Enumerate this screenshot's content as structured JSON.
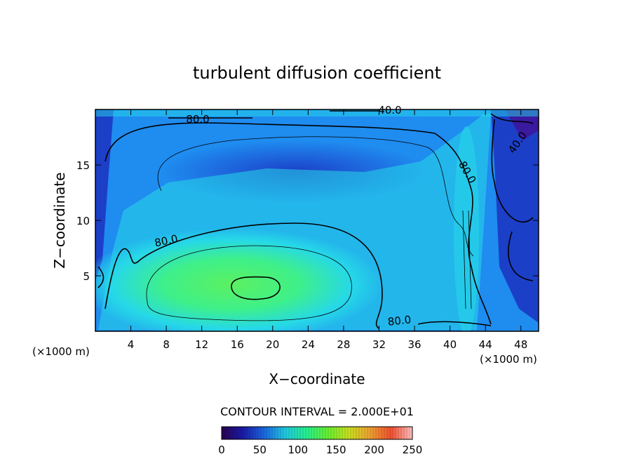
{
  "chart_data": {
    "type": "heatmap",
    "title": "turbulent diffusion coefficient",
    "xlabel": "X−coordinate",
    "ylabel": "Z−coordinate",
    "x_unit_left": "(×1000 m)",
    "x_unit_right": "(×1000 m)",
    "xlim": [
      0,
      50
    ],
    "ylim": [
      0,
      20
    ],
    "x_ticks": [
      4,
      8,
      12,
      16,
      20,
      24,
      28,
      32,
      36,
      40,
      44,
      48
    ],
    "y_ticks": [
      5,
      10,
      15
    ],
    "contour_interval_text": "CONTOUR INTERVAL = 2.000E+01",
    "contour_labels": [
      "80.0",
      "80.0",
      "80.0",
      "80.0",
      "40.0",
      "40.0"
    ],
    "colorbar": {
      "ticks": [
        0,
        50,
        100,
        150,
        200,
        250
      ],
      "range": [
        0,
        250
      ],
      "colors": [
        "#2a0050",
        "#1a1aa8",
        "#1b66e0",
        "#20c8e0",
        "#25f090",
        "#66f030",
        "#c8e020",
        "#f0a030",
        "#f05030",
        "#ffc0c0"
      ]
    },
    "field_colors": {
      "low": "#1c3fc8",
      "mid": "#1f8cf0",
      "cyan": "#26d8e8",
      "high": "#3ef08a",
      "peak": "#5cf060"
    }
  }
}
